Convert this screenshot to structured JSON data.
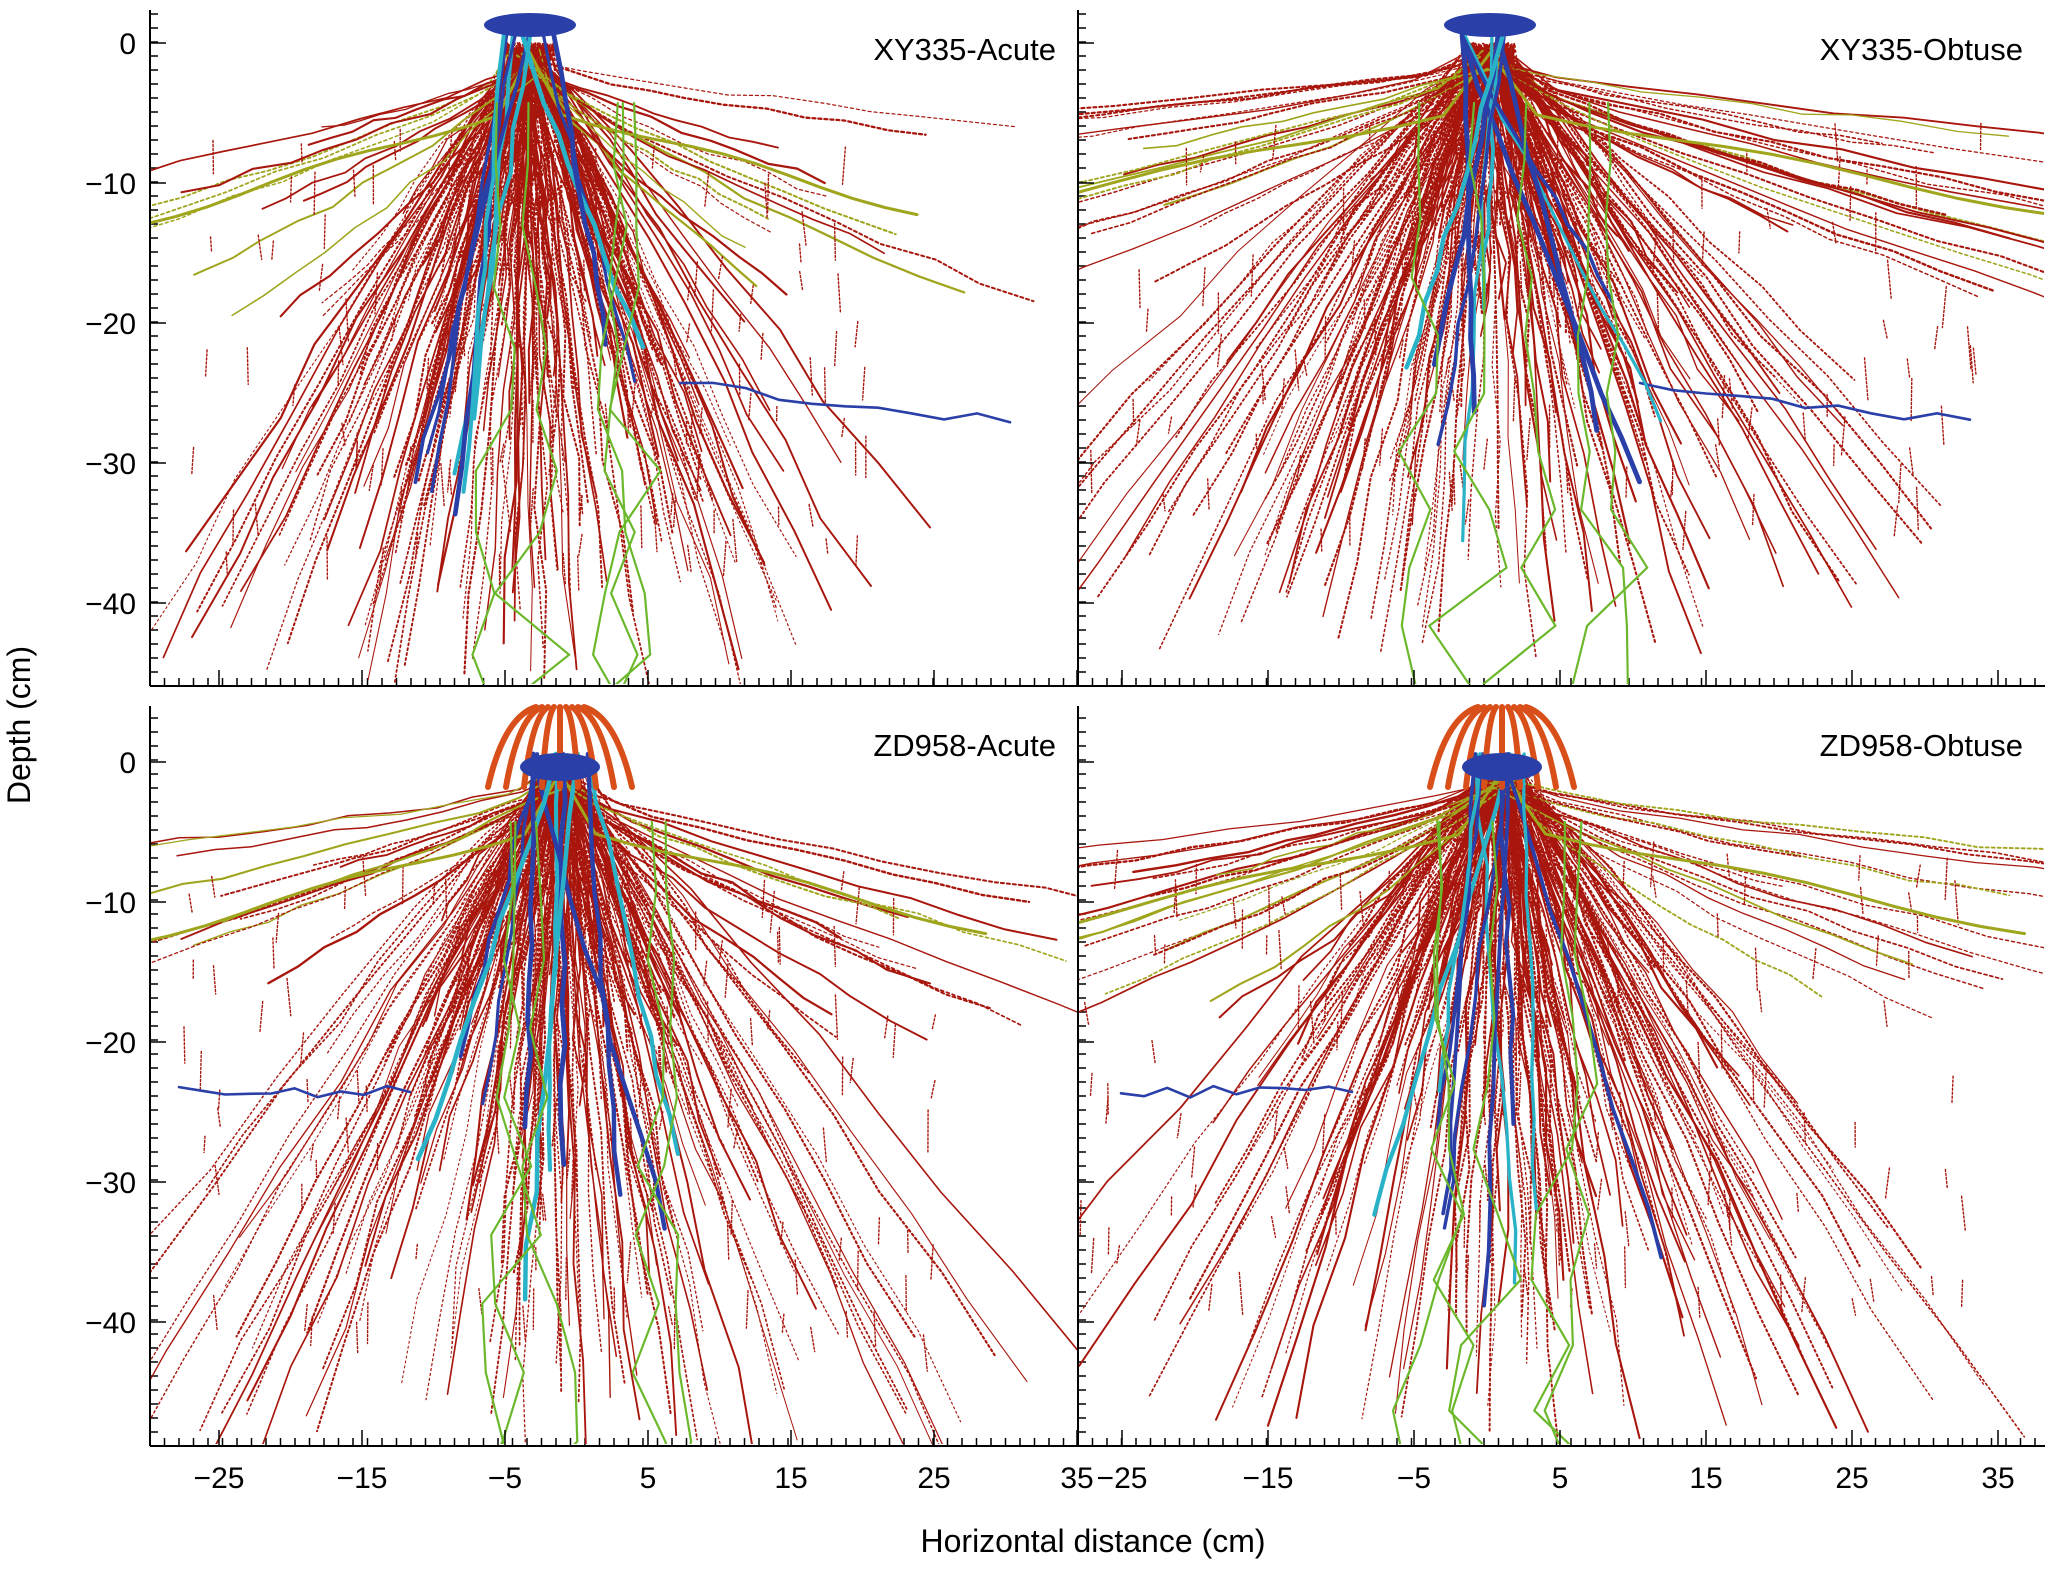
{
  "figure": {
    "xlabel": "Horizontal distance (cm)",
    "ylabel": "Depth (cm)",
    "x_ticks": [
      "−25",
      "−15",
      "−5",
      "5",
      "15",
      "25",
      "35"
    ],
    "y_ticks": [
      "0",
      "−10",
      "−20",
      "−30",
      "−40"
    ],
    "colors": {
      "primary_root": "#2a3fa8",
      "crown_root": "#d94f1a",
      "seminal_root": "#2ab3c8",
      "lateral_root": "#a8160d",
      "fine_lateral": "#9fa51c",
      "secondary": "#6cb82c"
    },
    "panels": [
      {
        "title": "XY335-Acute"
      },
      {
        "title": "XY335-Obtuse"
      },
      {
        "title": "ZD958-Acute"
      },
      {
        "title": "ZD958-Obtuse"
      }
    ]
  },
  "chart_data": {
    "type": "other",
    "xlim": [
      -28,
      38
    ],
    "ylim": [
      -45,
      2
    ],
    "x_ticks": [
      -25,
      -15,
      -5,
      5,
      15,
      25,
      35
    ],
    "y_ticks": [
      0,
      -10,
      -20,
      -30,
      -40
    ],
    "panels": [
      {
        "title": "XY335-Acute",
        "row": 0,
        "col": 0,
        "spread": 1.0,
        "depth": 1.0,
        "crown": false
      },
      {
        "title": "XY335-Obtuse",
        "row": 0,
        "col": 1,
        "spread": 1.45,
        "depth": 0.95,
        "crown": false
      },
      {
        "title": "ZD958-Acute",
        "row": 1,
        "col": 0,
        "spread": 1.1,
        "depth": 1.05,
        "crown": true
      },
      {
        "title": "ZD958-Obtuse",
        "row": 1,
        "col": 1,
        "spread": 1.35,
        "depth": 1.0,
        "crown": true
      }
    ]
  }
}
